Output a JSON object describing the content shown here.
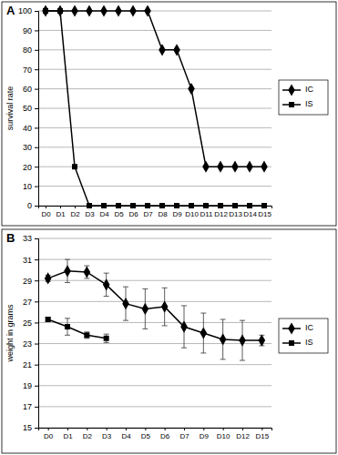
{
  "chart_data": [
    {
      "type": "line",
      "title": "A",
      "y_label": "survival rate",
      "categories": [
        "D0",
        "D1",
        "D2",
        "D3",
        "D4",
        "D5",
        "D6",
        "D7",
        "D8",
        "D9",
        "D10",
        "D11",
        "D12",
        "D13",
        "D14",
        "D15"
      ],
      "series": [
        {
          "name": "IC",
          "color": "#000000",
          "marker": "diamond",
          "values": [
            100,
            100,
            100,
            100,
            100,
            100,
            100,
            100,
            80,
            80,
            60,
            20,
            20,
            20,
            20,
            20
          ]
        },
        {
          "name": "IS",
          "color": "#000000",
          "marker": "square",
          "values": [
            100,
            100,
            20,
            0,
            0,
            0,
            0,
            0,
            0,
            0,
            0,
            0,
            0,
            0,
            0,
            0
          ]
        }
      ],
      "ylim": [
        0,
        100
      ],
      "yticks": [
        0,
        10,
        20,
        30,
        40,
        50,
        60,
        70,
        80,
        90,
        100
      ],
      "grid": true,
      "legend": "right"
    },
    {
      "type": "line",
      "title": "B",
      "y_label": "weight in grams",
      "categories": [
        "D0",
        "D1",
        "D2",
        "D3",
        "D4",
        "D5",
        "D6",
        "D7",
        "D9",
        "D10",
        "D12",
        "D15"
      ],
      "series": [
        {
          "name": "IC",
          "color": "#000000",
          "marker": "diamond",
          "values": [
            29.2,
            29.9,
            29.8,
            28.6,
            26.8,
            26.3,
            26.5,
            24.6,
            24.0,
            23.4,
            23.3,
            23.3
          ],
          "errors": [
            0.3,
            1.1,
            0.6,
            1.1,
            1.6,
            1.9,
            1.8,
            2.0,
            1.9,
            1.9,
            1.9,
            0.5
          ]
        },
        {
          "name": "IS",
          "color": "#000000",
          "marker": "square",
          "values": [
            25.3,
            24.6,
            23.8,
            23.5,
            null,
            null,
            null,
            null,
            null,
            null,
            null,
            null
          ],
          "errors": [
            0.2,
            0.8,
            0.3,
            0.4,
            null,
            null,
            null,
            null,
            null,
            null,
            null,
            null
          ]
        }
      ],
      "ylim": [
        15,
        33
      ],
      "yticks": [
        15,
        17,
        19,
        21,
        23,
        25,
        27,
        29,
        31,
        33
      ],
      "grid": true,
      "legend": "right"
    }
  ]
}
